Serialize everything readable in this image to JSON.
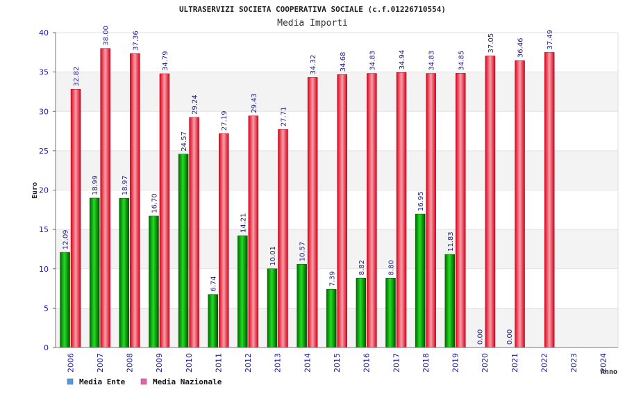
{
  "header": {
    "title": "ULTRASERVIZI SOCIETA COOPERATIVA SOCIALE (c.f.01226710554)",
    "subtitle": "Media Importi"
  },
  "chart_data": {
    "type": "bar",
    "xlabel": "Anno",
    "ylabel": "Euro",
    "ylim": [
      0,
      40
    ],
    "yticks": [
      0,
      5,
      10,
      15,
      20,
      25,
      30,
      35,
      40
    ],
    "categories": [
      "2006",
      "2007",
      "2008",
      "2009",
      "2010",
      "2011",
      "2012",
      "2013",
      "2014",
      "2015",
      "2016",
      "2017",
      "2018",
      "2019",
      "2020",
      "2021",
      "2022",
      "2023",
      "2024"
    ],
    "series": [
      {
        "name": "Media Ente",
        "color": "#00a000",
        "legend_color": "#5599dd",
        "values": [
          12.09,
          18.99,
          18.97,
          16.7,
          24.57,
          6.74,
          14.21,
          10.01,
          10.57,
          7.39,
          8.82,
          8.8,
          16.95,
          11.83,
          0.0,
          0.0,
          null,
          null,
          null
        ],
        "labels": [
          "12.09",
          "18.99",
          "18.97",
          "16.70",
          "24.57",
          "6.74",
          "14.21",
          "10.01",
          "10.57",
          "7.39",
          "8.82",
          "8.80",
          "16.95",
          "11.83",
          "0.00",
          "0.00",
          "",
          "",
          ""
        ]
      },
      {
        "name": "Media Nazionale",
        "color": "#e0102a",
        "legend_color": "#dd66aa",
        "values": [
          32.82,
          38.0,
          37.36,
          34.79,
          29.24,
          27.19,
          29.43,
          27.71,
          34.32,
          34.68,
          34.83,
          34.94,
          34.83,
          34.85,
          37.05,
          36.46,
          37.49,
          null,
          null
        ],
        "labels": [
          "32.82",
          "38.00",
          "37.36",
          "34.79",
          "29.24",
          "27.19",
          "29.43",
          "27.71",
          "34.32",
          "34.68",
          "34.83",
          "34.94",
          "34.83",
          "34.85",
          "37.05",
          "36.46",
          "37.49",
          "",
          ""
        ]
      }
    ],
    "legend_position": "bottom-left",
    "grid": true
  }
}
